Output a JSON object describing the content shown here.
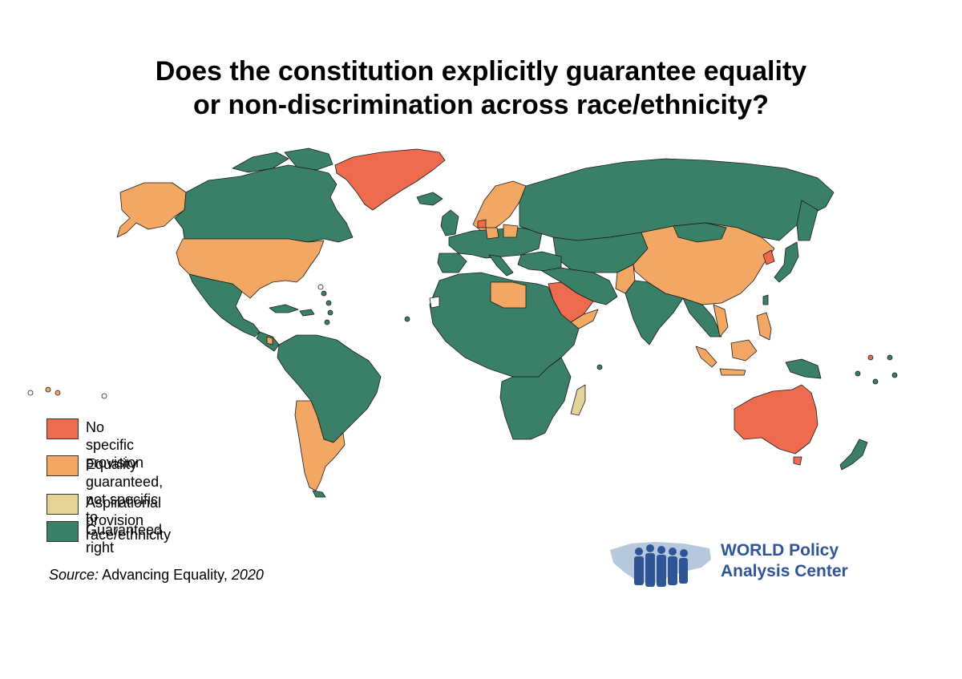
{
  "title": {
    "line1": "Does the constitution explicitly guarantee equality",
    "line2": "or non-discrimination across race/ethnicity?"
  },
  "legend": [
    {
      "key": "none",
      "label": "No specific provision",
      "color": "#ee6b4d"
    },
    {
      "key": "equality",
      "label": "Equality guaranteed,\nnot specific to race/ethnicity",
      "color": "#f2a764"
    },
    {
      "key": "aspirational",
      "label": "Aspirational provision",
      "color": "#e2d496"
    },
    {
      "key": "guaranteed",
      "label": "Guaranteed right",
      "color": "#3a8066"
    }
  ],
  "source": {
    "prefix": "Source:",
    "text": "Advancing Equality,",
    "year": "2020"
  },
  "logo": {
    "text": "WORLD Policy\nAnalysis Center",
    "color": "#2f5597",
    "icon": "people-over-world-map-icon"
  },
  "map_colors": {
    "none": "#ee6b4d",
    "equality": "#f2a764",
    "aspirational": "#e2d496",
    "guaranteed": "#3a8066",
    "no_data": "#ffffff",
    "border": "#1a1a1a"
  }
}
